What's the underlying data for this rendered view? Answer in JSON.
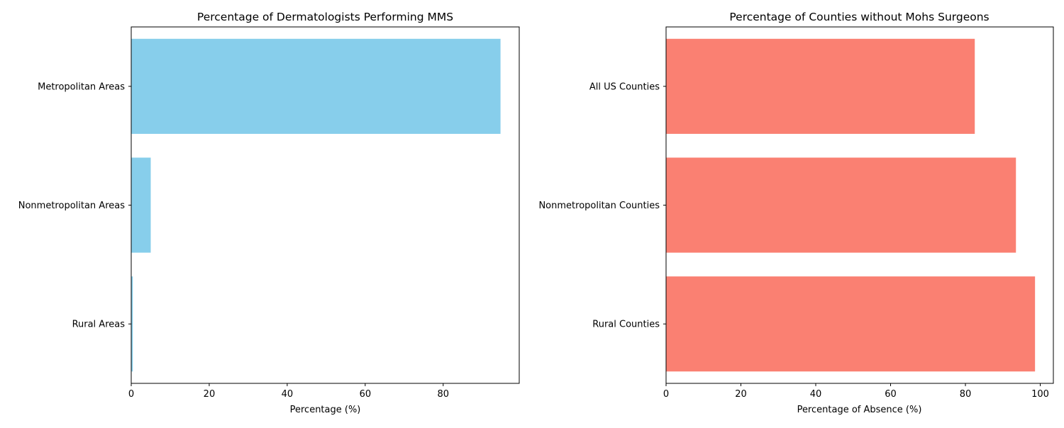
{
  "chart_data": [
    {
      "type": "bar",
      "orientation": "horizontal",
      "title": "Percentage of Dermatologists Performing MMS",
      "xlabel": "Percentage (%)",
      "ylabel": "",
      "categories": [
        "Metropolitan Areas",
        "Nonmetropolitan Areas",
        "Rural Areas"
      ],
      "values": [
        94.7,
        5.0,
        0.4
      ],
      "xlim": [
        0,
        99.5
      ],
      "xticks": [
        "0",
        "20",
        "40",
        "60",
        "80"
      ],
      "xtick_values": [
        0,
        20,
        40,
        60,
        80
      ],
      "grid": false,
      "color": "#87CEEB"
    },
    {
      "type": "bar",
      "orientation": "horizontal",
      "title": "Percentage of Counties without Mohs Surgeons",
      "xlabel": "Percentage of Absence (%)",
      "ylabel": "",
      "categories": [
        "All US Counties",
        "Nonmetropolitan Counties",
        "Rural Counties"
      ],
      "values": [
        82.5,
        93.5,
        98.6
      ],
      "xlim": [
        0,
        103.5
      ],
      "xticks": [
        "0",
        "20",
        "40",
        "60",
        "80",
        "100"
      ],
      "xtick_values": [
        0,
        20,
        40,
        60,
        80,
        100
      ],
      "grid": false,
      "color": "#FA8072"
    }
  ]
}
